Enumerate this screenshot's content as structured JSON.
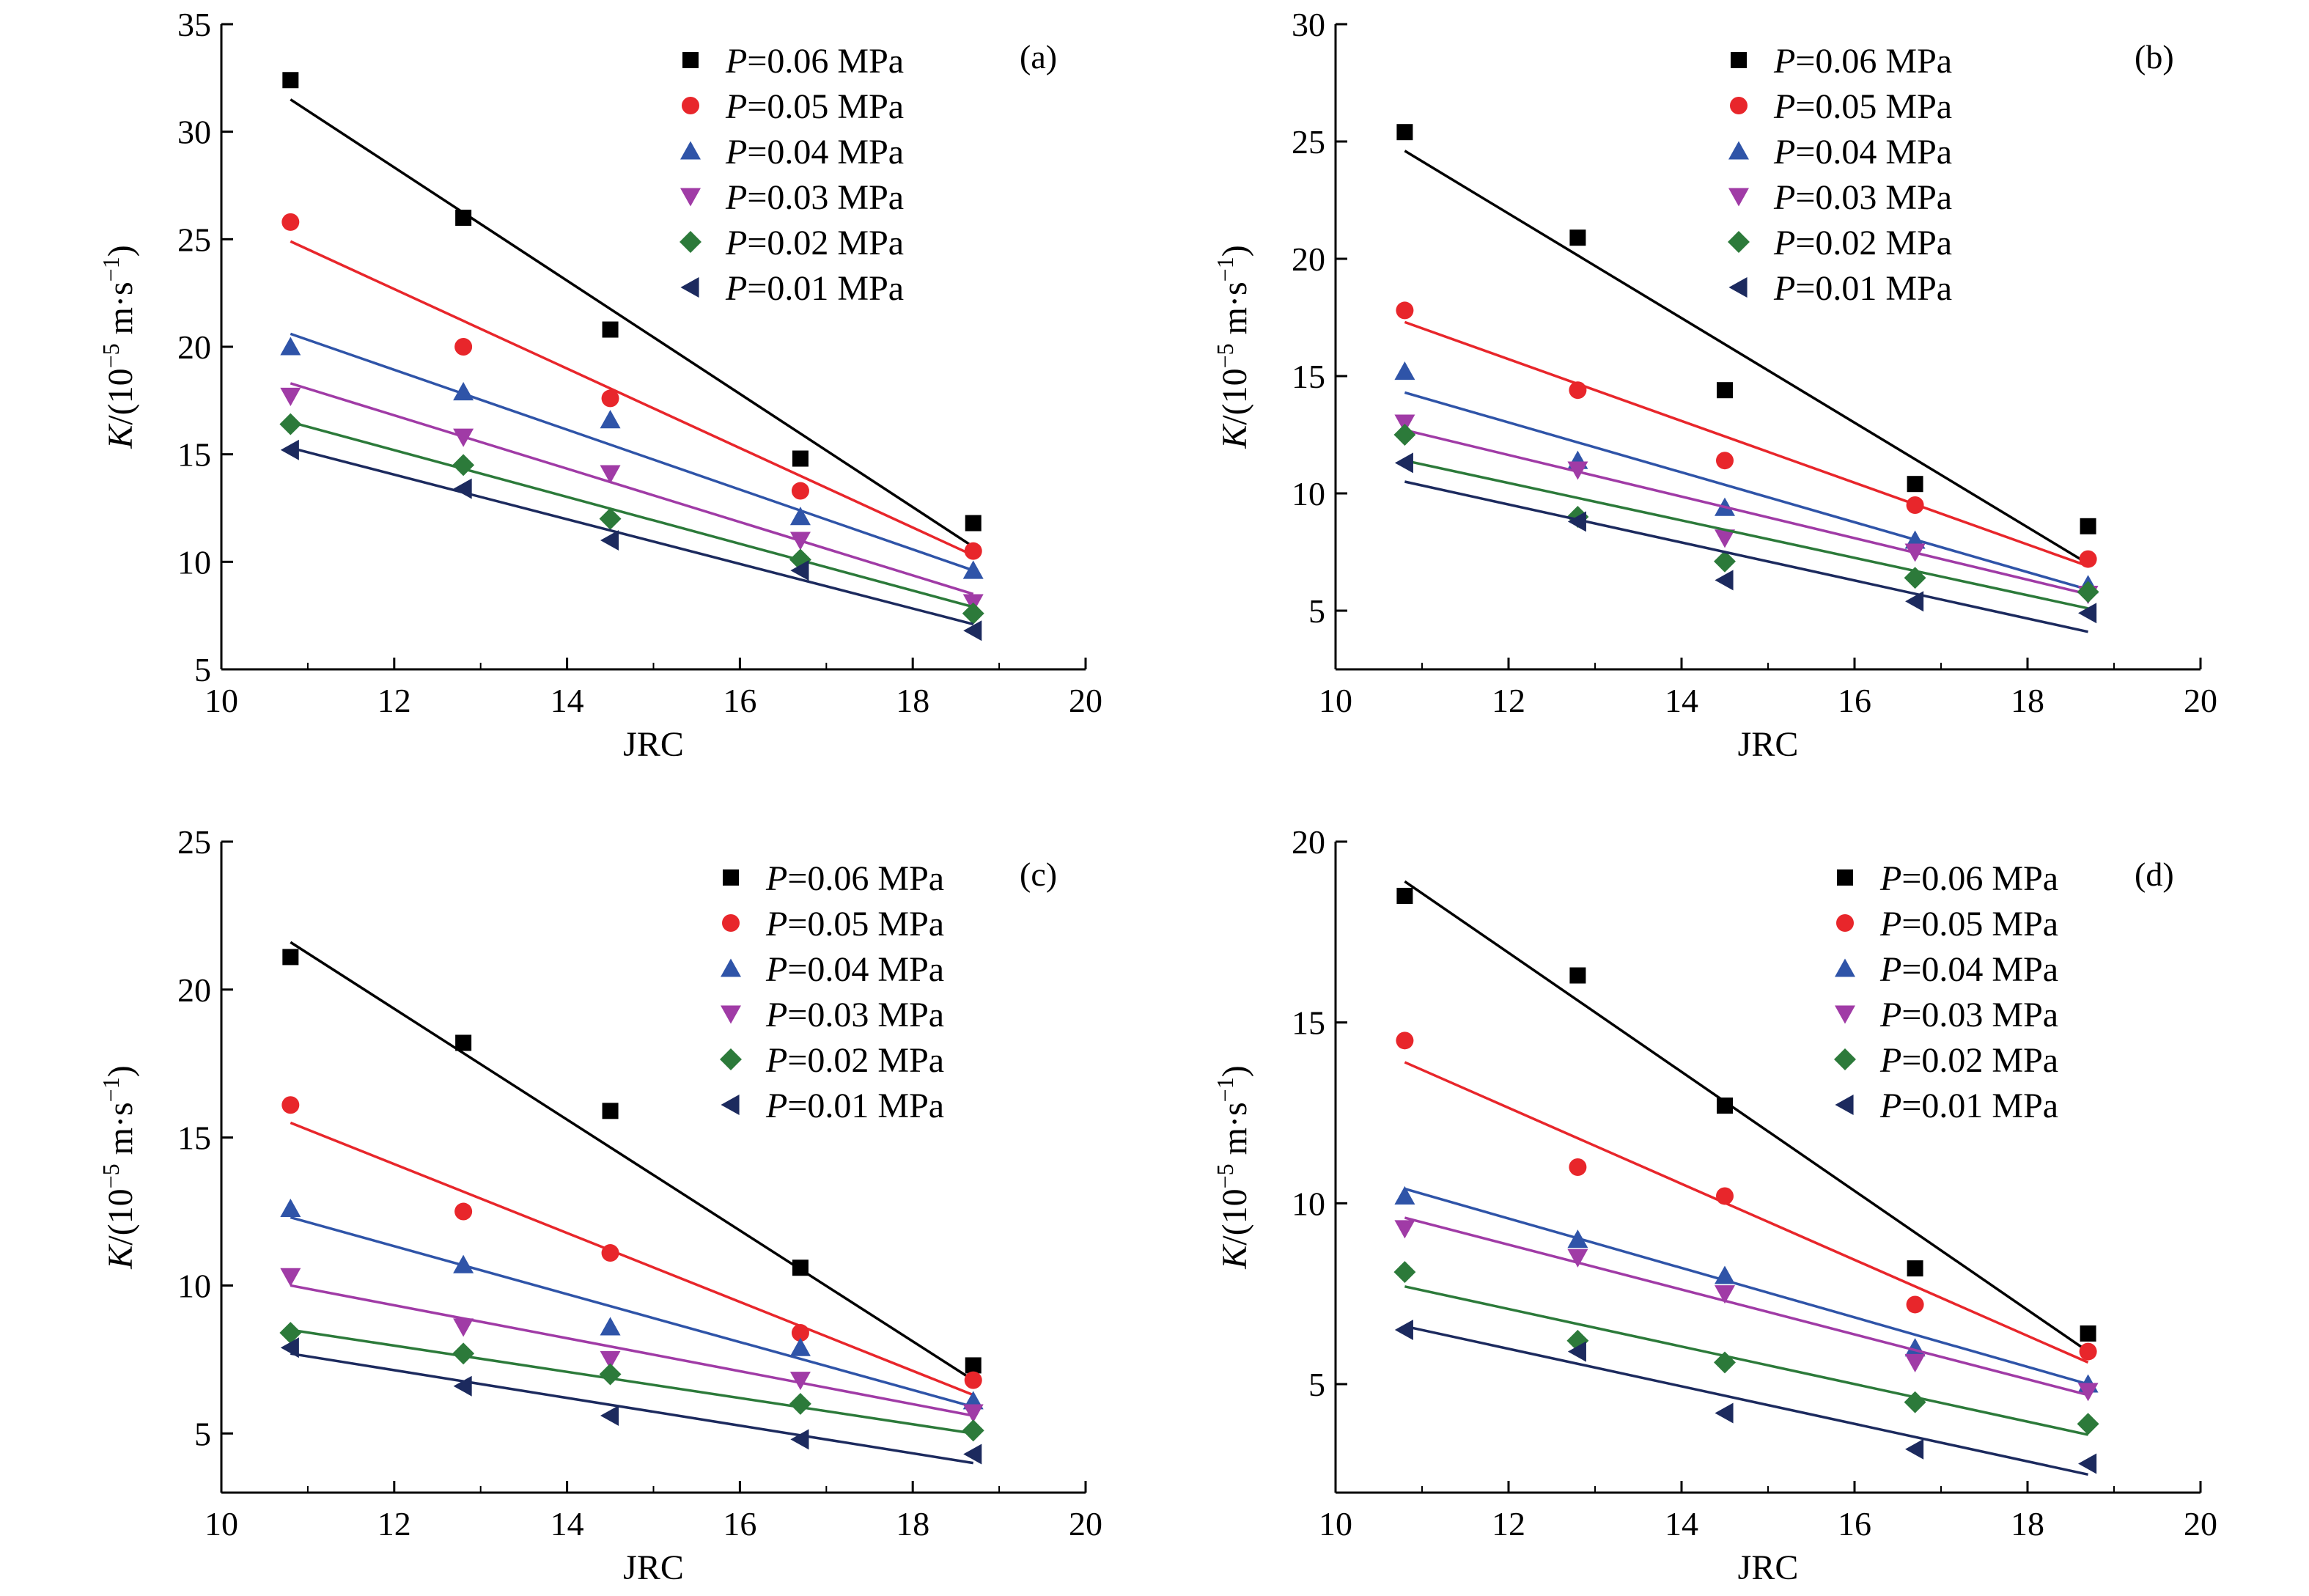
{
  "figure": {
    "background": "#ffffff",
    "marker_styles": [
      {
        "series": "P=0.06 MPa",
        "shape": "square",
        "color": "#000000"
      },
      {
        "series": "P=0.05 MPa",
        "shape": "circle",
        "color": "#e8262b"
      },
      {
        "series": "P=0.04 MPa",
        "shape": "triangle-up",
        "color": "#2f54a8"
      },
      {
        "series": "P=0.03 MPa",
        "shape": "triangle-down",
        "color": "#a03ba6"
      },
      {
        "series": "P=0.02 MPa",
        "shape": "diamond",
        "color": "#2c7a3a"
      },
      {
        "series": "P=0.01 MPa",
        "shape": "triangle-left",
        "color": "#1c2a5e"
      }
    ]
  },
  "chart_data": [
    {
      "type": "scatter",
      "panel_label": "(a)",
      "xlabel": "JRC",
      "ylabel_italic": "K",
      "ylabel_rest": "/(10",
      "ylabel_exp1": "−5",
      "ylabel_mid": " m·s",
      "ylabel_exp2": "−1",
      "ylabel_close": ")",
      "xlim": [
        10,
        20
      ],
      "ylim": [
        5,
        35
      ],
      "xticks": [
        "10",
        "12",
        "14",
        "16",
        "18",
        "20"
      ],
      "yticks": [
        "5",
        "10",
        "15",
        "20",
        "25",
        "30",
        "35"
      ],
      "x": [
        10.8,
        12.8,
        14.5,
        16.7,
        18.7
      ],
      "legend_position": "top-right",
      "series": [
        {
          "name_var": "P",
          "name_rest": "=0.06 MPa",
          "values": [
            32.4,
            26.0,
            20.8,
            14.8,
            11.8
          ],
          "fit": [
            31.5,
            10.7
          ]
        },
        {
          "name_var": "P",
          "name_rest": "=0.05 MPa",
          "values": [
            25.8,
            20.0,
            17.6,
            13.3,
            10.5
          ],
          "fit": [
            24.9,
            10.3
          ]
        },
        {
          "name_var": "P",
          "name_rest": "=0.04 MPa",
          "values": [
            20.0,
            17.9,
            16.6,
            12.1,
            9.6
          ],
          "fit": [
            20.6,
            9.6
          ]
        },
        {
          "name_var": "P",
          "name_rest": "=0.03 MPa",
          "values": [
            17.7,
            15.8,
            14.1,
            11.0,
            8.1
          ],
          "fit": [
            18.3,
            8.5
          ]
        },
        {
          "name_var": "P",
          "name_rest": "=0.02 MPa",
          "values": [
            16.4,
            14.5,
            12.0,
            10.1,
            7.6
          ],
          "fit": [
            16.5,
            7.9
          ]
        },
        {
          "name_var": "P",
          "name_rest": "=0.01 MPa",
          "values": [
            15.2,
            13.4,
            11.0,
            9.6,
            6.8
          ],
          "fit": [
            15.3,
            7.1
          ]
        }
      ]
    },
    {
      "type": "scatter",
      "panel_label": "(b)",
      "xlabel": "JRC",
      "ylabel_italic": "K",
      "ylabel_rest": "/(10",
      "ylabel_exp1": "−5",
      "ylabel_mid": " m·s",
      "ylabel_exp2": "−1",
      "ylabel_close": ")",
      "xlim": [
        10,
        20
      ],
      "ylim": [
        2.5,
        30
      ],
      "xticks": [
        "10",
        "12",
        "14",
        "16",
        "18",
        "20"
      ],
      "yticks": [
        "5",
        "10",
        "15",
        "20",
        "25",
        "30"
      ],
      "x": [
        10.8,
        12.8,
        14.5,
        16.7,
        18.7
      ],
      "legend_position": "top-right",
      "series": [
        {
          "name_var": "P",
          "name_rest": "=0.06 MPa",
          "values": [
            25.4,
            20.9,
            14.4,
            10.4,
            8.6
          ],
          "fit": [
            24.6,
            7.0
          ]
        },
        {
          "name_var": "P",
          "name_rest": "=0.05 MPa",
          "values": [
            17.8,
            14.4,
            11.4,
            9.5,
            7.2
          ],
          "fit": [
            17.3,
            6.9
          ]
        },
        {
          "name_var": "P",
          "name_rest": "=0.04 MPa",
          "values": [
            15.2,
            11.4,
            9.4,
            8.0,
            6.1
          ],
          "fit": [
            14.3,
            5.9
          ]
        },
        {
          "name_var": "P",
          "name_rest": "=0.03 MPa",
          "values": [
            13.0,
            11.0,
            8.1,
            7.5,
            5.7
          ],
          "fit": [
            12.7,
            5.7
          ]
        },
        {
          "name_var": "P",
          "name_rest": "=0.02 MPa",
          "values": [
            12.5,
            9.0,
            7.1,
            6.4,
            5.8
          ],
          "fit": [
            11.4,
            5.1
          ]
        },
        {
          "name_var": "P",
          "name_rest": "=0.01 MPa",
          "values": [
            11.3,
            8.8,
            6.3,
            5.4,
            4.9
          ],
          "fit": [
            10.5,
            4.1
          ]
        }
      ]
    },
    {
      "type": "scatter",
      "panel_label": "(c)",
      "xlabel": "JRC",
      "ylabel_italic": "K",
      "ylabel_rest": "/(10",
      "ylabel_exp1": "−5",
      "ylabel_mid": " m·s",
      "ylabel_exp2": "−1",
      "ylabel_close": ")",
      "xlim": [
        10,
        20
      ],
      "ylim": [
        3,
        25
      ],
      "xticks": [
        "10",
        "12",
        "14",
        "16",
        "18",
        "20"
      ],
      "yticks": [
        "5",
        "10",
        "15",
        "20",
        "25"
      ],
      "x": [
        10.8,
        12.8,
        14.5,
        16.7,
        18.7
      ],
      "legend_position": "top-right",
      "series": [
        {
          "name_var": "P",
          "name_rest": "=0.06 MPa",
          "values": [
            21.1,
            18.2,
            15.9,
            10.6,
            7.3
          ],
          "fit": [
            21.6,
            6.8
          ]
        },
        {
          "name_var": "P",
          "name_rest": "=0.05 MPa",
          "values": [
            16.1,
            12.5,
            11.1,
            8.4,
            6.8
          ],
          "fit": [
            15.5,
            6.3
          ]
        },
        {
          "name_var": "P",
          "name_rest": "=0.04 MPa",
          "values": [
            12.6,
            10.7,
            8.6,
            7.9,
            6.1
          ],
          "fit": [
            12.3,
            5.9
          ]
        },
        {
          "name_var": "P",
          "name_rest": "=0.03 MPa",
          "values": [
            10.3,
            8.6,
            7.5,
            6.8,
            5.7
          ],
          "fit": [
            10.0,
            5.6
          ]
        },
        {
          "name_var": "P",
          "name_rest": "=0.02 MPa",
          "values": [
            8.4,
            7.7,
            7.0,
            6.0,
            5.1
          ],
          "fit": [
            8.5,
            5.0
          ]
        },
        {
          "name_var": "P",
          "name_rest": "=0.01 MPa",
          "values": [
            7.9,
            6.6,
            5.6,
            4.8,
            4.3
          ],
          "fit": [
            7.7,
            4.0
          ]
        }
      ]
    },
    {
      "type": "scatter",
      "panel_label": "(d)",
      "xlabel": "JRC",
      "ylabel_italic": "K",
      "ylabel_rest": "/(10",
      "ylabel_exp1": "−5",
      "ylabel_mid": " m·s",
      "ylabel_exp2": "−1",
      "ylabel_close": ")",
      "xlim": [
        10,
        20
      ],
      "ylim": [
        2,
        20
      ],
      "xticks": [
        "10",
        "12",
        "14",
        "16",
        "18",
        "20"
      ],
      "yticks": [
        "5",
        "10",
        "15",
        "20"
      ],
      "x": [
        10.8,
        12.8,
        14.5,
        16.7,
        18.7
      ],
      "legend_position": "top-right",
      "series": [
        {
          "name_var": "P",
          "name_rest": "=0.06 MPa",
          "values": [
            18.5,
            16.3,
            12.7,
            8.2,
            6.4
          ],
          "fit": [
            18.9,
            5.9
          ]
        },
        {
          "name_var": "P",
          "name_rest": "=0.05 MPa",
          "values": [
            14.5,
            11.0,
            10.2,
            7.2,
            5.9
          ],
          "fit": [
            13.9,
            5.6
          ]
        },
        {
          "name_var": "P",
          "name_rest": "=0.04 MPa",
          "values": [
            10.2,
            9.0,
            8.0,
            6.0,
            5.0
          ],
          "fit": [
            10.4,
            5.0
          ]
        },
        {
          "name_var": "P",
          "name_rest": "=0.03 MPa",
          "values": [
            9.3,
            8.5,
            7.5,
            5.6,
            4.8
          ],
          "fit": [
            9.6,
            4.7
          ]
        },
        {
          "name_var": "P",
          "name_rest": "=0.02 MPa",
          "values": [
            8.1,
            6.2,
            5.6,
            4.5,
            3.9
          ],
          "fit": [
            7.7,
            3.6
          ]
        },
        {
          "name_var": "P",
          "name_rest": "=0.01 MPa",
          "values": [
            6.5,
            5.9,
            4.2,
            3.2,
            2.8
          ],
          "fit": [
            6.6,
            2.5
          ]
        }
      ]
    }
  ]
}
